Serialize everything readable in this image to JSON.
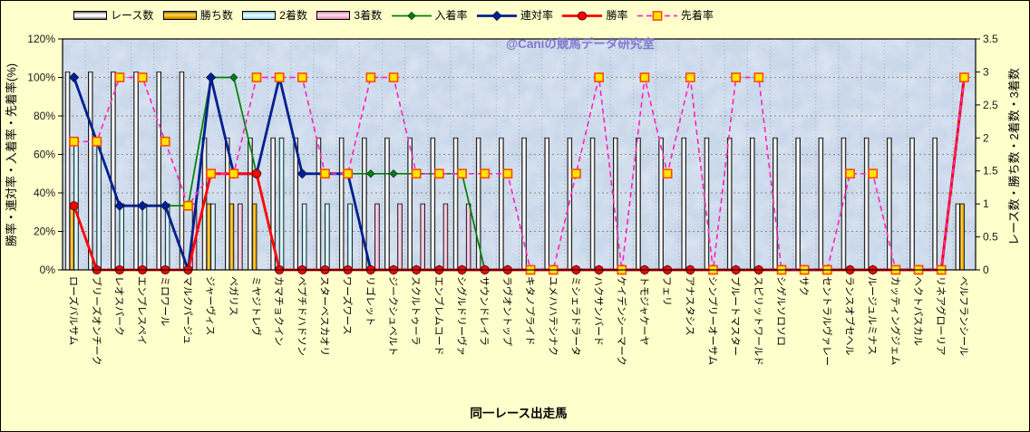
{
  "page": {
    "background_color": "#FFFFCC",
    "plot_background_color": "#C9D8EA",
    "watermark": "@Caniの競馬データ研究室",
    "watermark_color": "#7B6FC9"
  },
  "legend": {
    "items": [
      {
        "key": "races",
        "label": "レース数",
        "kind": "bar",
        "color": "#FFFFFF"
      },
      {
        "key": "wins",
        "label": "勝ち数",
        "kind": "bar",
        "color": "#F5AE00"
      },
      {
        "key": "seconds",
        "label": "2着数",
        "kind": "bar",
        "color": "#CFF4FB"
      },
      {
        "key": "thirds",
        "label": "3着数",
        "kind": "bar",
        "color": "#F9BCD2"
      },
      {
        "key": "nyuchaku",
        "label": "入着率",
        "kind": "line",
        "color": "#008000",
        "marker": "diamond"
      },
      {
        "key": "rentai",
        "label": "連対率",
        "kind": "line",
        "color": "#001F8F",
        "marker": "diamond"
      },
      {
        "key": "shoritsu",
        "label": "勝率",
        "kind": "line",
        "color": "#FF0000",
        "marker": "circle"
      },
      {
        "key": "senchaku",
        "label": "先着率",
        "kind": "line-dashed",
        "color": "#FF2DBE",
        "marker": "square"
      }
    ]
  },
  "chart_data": {
    "type": "bar+line combo",
    "x_axis": {
      "title": "同一レース出走馬"
    },
    "left_axis": {
      "title": "勝率・連対率・入着率・先着率(%)",
      "min": 0,
      "max": 120,
      "step": 20,
      "format": "percent"
    },
    "right_axis": {
      "title": "レース数・勝ち数・2着数・3着数",
      "min": 0,
      "max": 3.5,
      "step": 0.5
    },
    "grid": {
      "horizontal": true,
      "vertical": true
    },
    "legend_position": "top",
    "categories": [
      "ローズバルサム",
      "ブリーズオンチーク",
      "レオスパーク",
      "エンプレスペイ",
      "ミロワール",
      "マルクパージュ",
      "ジャーヴィス",
      "ペガリス",
      "ミヤジトレヴ",
      "カマチョクイン",
      "ペプチドハドソン",
      "スターベスカオリ",
      "ワーズワース",
      "リゴレット",
      "ジークシュベルト",
      "スクルトゥーラ",
      "エンブレムコード",
      "シグルドリーヴァ",
      "サウンドレイラ",
      "ラヴオントップ",
      "キタノプライド",
      "ユメハハテシナク",
      "ミシェラドラータ",
      "ハクサンバード",
      "ケイデンシーマーク",
      "トモジャケーヤ",
      "フェリ",
      "アナスタシス",
      "シンプリーオーサム",
      "プルートマスター",
      "スピリットワールド",
      "シゲルソロソロ",
      "サク",
      "セントラルヴァレー",
      "ランスオブセヘル",
      "ルージュルミナス",
      "カッティングジェム",
      "ヘクトパスカル",
      "リネアグローリア",
      "ベルフランシール"
    ],
    "series": [
      {
        "key": "races",
        "name": "レース数",
        "type": "bar",
        "axis": "right",
        "color": "#FFFFFF",
        "values": [
          3,
          3,
          3,
          3,
          3,
          3,
          2,
          2,
          2,
          2,
          2,
          2,
          2,
          2,
          2,
          2,
          2,
          2,
          2,
          2,
          2,
          2,
          2,
          2,
          2,
          2,
          2,
          2,
          2,
          2,
          2,
          2,
          2,
          2,
          2,
          2,
          2,
          2,
          2,
          1
        ]
      },
      {
        "key": "wins",
        "name": "勝ち数",
        "type": "bar",
        "axis": "right",
        "color": "#F5AE00",
        "values": [
          1,
          0,
          0,
          0,
          0,
          0,
          1,
          1,
          1,
          0,
          0,
          0,
          0,
          0,
          0,
          0,
          0,
          0,
          0,
          0,
          0,
          0,
          0,
          0,
          0,
          0,
          0,
          0,
          0,
          0,
          0,
          0,
          0,
          0,
          0,
          0,
          0,
          0,
          0,
          1
        ]
      },
      {
        "key": "seconds",
        "name": "2着数",
        "type": "bar",
        "axis": "right",
        "color": "#CFF4FB",
        "values": [
          2,
          2,
          1,
          1,
          1,
          0,
          1,
          0,
          0,
          2,
          1,
          1,
          1,
          0,
          0,
          0,
          0,
          0,
          0,
          0,
          0,
          0,
          0,
          0,
          0,
          0,
          0,
          0,
          0,
          0,
          0,
          0,
          0,
          0,
          0,
          0,
          0,
          0,
          0,
          0
        ]
      },
      {
        "key": "thirds",
        "name": "3着数",
        "type": "bar",
        "axis": "right",
        "color": "#F9BCD2",
        "values": [
          0,
          0,
          0,
          0,
          0,
          1,
          0,
          1,
          0,
          0,
          0,
          0,
          0,
          1,
          1,
          1,
          1,
          1,
          0,
          0,
          0,
          0,
          0,
          0,
          0,
          0,
          0,
          0,
          0,
          0,
          0,
          0,
          0,
          0,
          0,
          0,
          0,
          0,
          0,
          0
        ]
      },
      {
        "key": "nyuchaku",
        "name": "入着率",
        "type": "line",
        "axis": "left",
        "color": "#008000",
        "marker": "diamond",
        "values": [
          100,
          66.7,
          33.3,
          33.3,
          33.3,
          33.3,
          100,
          100,
          50,
          100,
          50,
          50,
          50,
          50,
          50,
          50,
          50,
          50,
          0,
          0,
          0,
          0,
          0,
          0,
          0,
          0,
          0,
          0,
          0,
          0,
          0,
          0,
          0,
          0,
          0,
          0,
          0,
          0,
          0,
          100
        ]
      },
      {
        "key": "rentai",
        "name": "連対率",
        "type": "line",
        "axis": "left",
        "color": "#001F8F",
        "marker": "diamond",
        "values": [
          100,
          66.7,
          33.3,
          33.3,
          33.3,
          0,
          100,
          50,
          50,
          100,
          50,
          50,
          50,
          0,
          0,
          0,
          0,
          0,
          0,
          0,
          0,
          0,
          0,
          0,
          0,
          0,
          0,
          0,
          0,
          0,
          0,
          0,
          0,
          0,
          0,
          0,
          0,
          0,
          0,
          100
        ]
      },
      {
        "key": "shoritsu",
        "name": "勝率",
        "type": "line",
        "axis": "left",
        "color": "#FF0000",
        "marker": "circle",
        "values": [
          33.3,
          0,
          0,
          0,
          0,
          0,
          50,
          50,
          50,
          0,
          0,
          0,
          0,
          0,
          0,
          0,
          0,
          0,
          0,
          0,
          0,
          0,
          0,
          0,
          0,
          0,
          0,
          0,
          0,
          0,
          0,
          0,
          0,
          0,
          0,
          0,
          0,
          0,
          0,
          100
        ]
      },
      {
        "key": "senchaku",
        "name": "先着率",
        "type": "line",
        "axis": "left",
        "color": "#FF2DBE",
        "marker": "square",
        "dashed": true,
        "values": [
          66.7,
          66.7,
          100,
          100,
          66.7,
          33.3,
          50,
          50,
          100,
          100,
          100,
          50,
          50,
          100,
          100,
          50,
          50,
          50,
          50,
          50,
          0,
          0,
          50,
          100,
          0,
          100,
          50,
          100,
          0,
          100,
          100,
          0,
          0,
          0,
          50,
          50,
          0,
          0,
          0,
          100
        ]
      }
    ]
  }
}
